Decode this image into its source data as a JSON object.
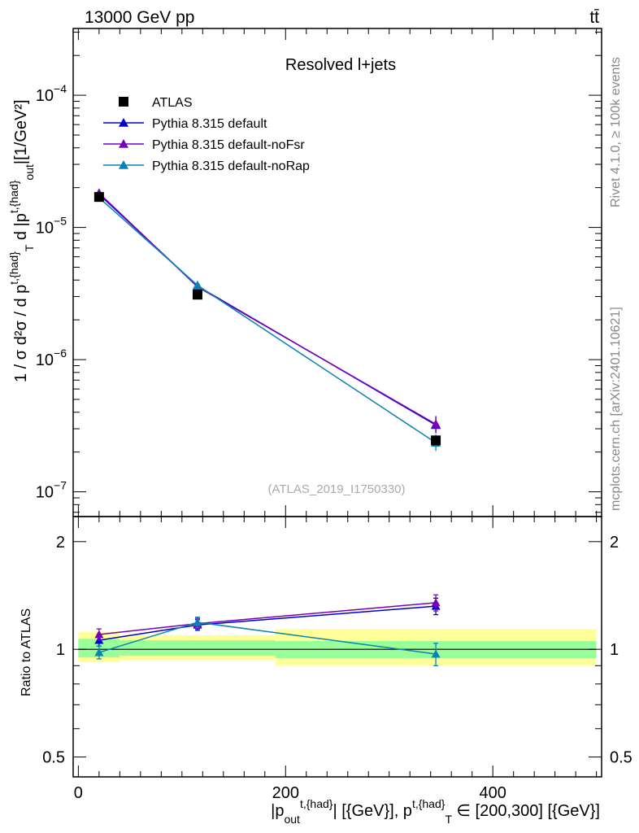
{
  "header": {
    "left": "13000 GeV pp",
    "right": "tt̄"
  },
  "side_labels": {
    "rivet": "Rivet 4.1.0, ≥ 100k events",
    "mcplots": "mcplots.cern.ch [arXiv:2401.10621]"
  },
  "chart_data": [
    {
      "type": "line",
      "title": "Resolved l+jets",
      "watermark": "(ATLAS_2019_I1750330)",
      "ylabel": "1 / σ d²σ / d p^{t,{had}}_{T} d |p^{t,{had}}_{out}|[1/GeV²]",
      "yscale": "log",
      "ylim": [
        6.5e-08,
        0.00032
      ],
      "xlim": [
        -5,
        505
      ],
      "y_tick_labels": [
        {
          "value": 1e-07,
          "base": "10",
          "exp": "−7"
        },
        {
          "value": 1e-06,
          "base": "10",
          "exp": "−6"
        },
        {
          "value": 1e-05,
          "base": "10",
          "exp": "−5"
        },
        {
          "value": 0.0001,
          "base": "10",
          "exp": "−4"
        }
      ],
      "legend_position": "top-left",
      "data": {
        "name": "ATLAS",
        "x": [
          20,
          115,
          345
        ],
        "y": [
          1.7e-05,
          3.1e-06,
          2.45e-07
        ],
        "bins": [
          [
            0,
            40
          ],
          [
            40,
            190
          ],
          [
            190,
            500
          ]
        ]
      },
      "series": [
        {
          "name": "Pythia 8.315 default",
          "color": "#0000cc",
          "x": [
            20,
            115,
            345
          ],
          "y": [
            1.78e-05,
            3.6e-06,
            3.2e-07
          ]
        },
        {
          "name": "Pythia 8.315 default-noFsr",
          "color": "#7a00b8",
          "x": [
            20,
            115,
            345
          ],
          "y": [
            1.82e-05,
            3.55e-06,
            3.25e-07
          ]
        },
        {
          "name": "Pythia 8.315 default-noRap",
          "color": "#0a82b4",
          "x": [
            20,
            115,
            345
          ],
          "y": [
            1.68e-05,
            3.65e-06,
            2.35e-07
          ]
        }
      ]
    },
    {
      "type": "line",
      "ylabel": "Ratio to ATLAS",
      "xlabel": "|p_{out}^{t,{had}}| [{GeV}], p^{t,{had}}_{T} ∈ [200,300] [{GeV}]",
      "yscale": "log",
      "ylim": [
        0.44,
        2.35
      ],
      "xlim": [
        -5,
        505
      ],
      "y_ticks": [
        0.5,
        1,
        2
      ],
      "y_tick_labels": [
        "0.5",
        "1",
        "2"
      ],
      "x_ticks": [
        0,
        200,
        400
      ],
      "x_tick_labels": [
        "0",
        "200",
        "400"
      ],
      "bands": [
        {
          "x0": 0,
          "x1": 40,
          "stat": [
            0.95,
            1.07
          ],
          "total": [
            0.92,
            1.12
          ]
        },
        {
          "x0": 40,
          "x1": 190,
          "stat": [
            0.96,
            1.06
          ],
          "total": [
            0.935,
            1.095
          ]
        },
        {
          "x0": 190,
          "x1": 500,
          "stat": [
            0.945,
            1.055
          ],
          "total": [
            0.9,
            1.14
          ]
        }
      ],
      "series": [
        {
          "name": "Pythia 8.315 default",
          "color": "#0000cc",
          "x": [
            20,
            115,
            345
          ],
          "y": [
            1.06,
            1.17,
            1.32
          ],
          "err": [
            0.04,
            0.04,
            0.07
          ]
        },
        {
          "name": "Pythia 8.315 default-noFsr",
          "color": "#7a00b8",
          "x": [
            20,
            115,
            345
          ],
          "y": [
            1.1,
            1.18,
            1.35
          ],
          "err": [
            0.04,
            0.04,
            0.07
          ]
        },
        {
          "name": "Pythia 8.315 default-noRap",
          "color": "#0a82b4",
          "x": [
            20,
            115,
            345
          ],
          "y": [
            0.98,
            1.19,
            0.97
          ],
          "err": [
            0.04,
            0.04,
            0.07
          ]
        }
      ]
    }
  ]
}
